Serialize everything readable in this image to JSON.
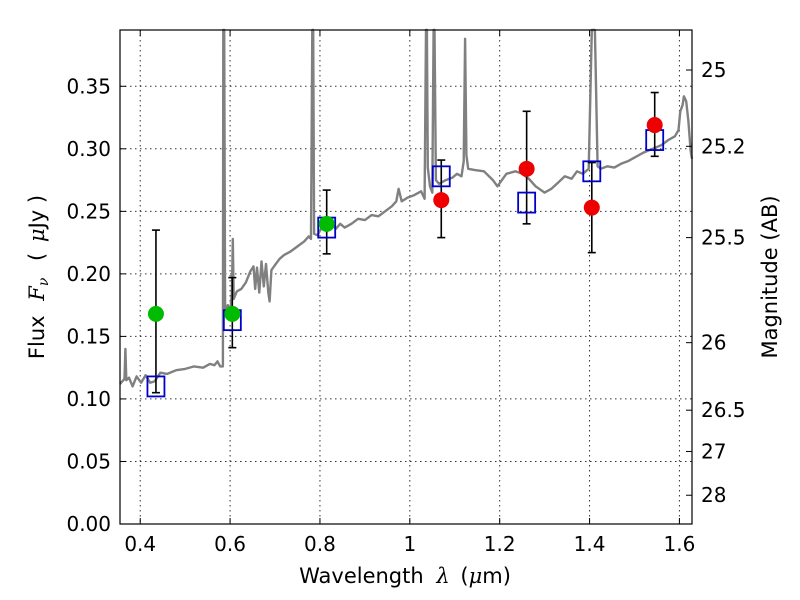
{
  "chart_data": {
    "type": "scatter",
    "xlabel": "Wavelength",
    "xlabel_symbol": "λ",
    "xlabel_unit_open": "(",
    "xlabel_unit_mu": "μ",
    "xlabel_unit_rest": "m)",
    "ylabel": "Flux",
    "ylabel_symbol": "F",
    "ylabel_subscript": "ν",
    "ylabel_unit_open": "(",
    "ylabel_unit_mu": "μ",
    "ylabel_unit_rest": "Jy )",
    "y2label": "Magnitude (AB)",
    "xlim": [
      0.355,
      1.628
    ],
    "ylim": [
      0.0,
      0.395
    ],
    "grid": true,
    "x_ticks": [
      0.4,
      0.6,
      0.8,
      1.0,
      1.2,
      1.4,
      1.6
    ],
    "x_tick_labels": [
      "0.4",
      "0.6",
      "0.8",
      "1",
      "1.2",
      "1.4",
      "1.6"
    ],
    "y_ticks": [
      0.0,
      0.05,
      0.1,
      0.15,
      0.2,
      0.25,
      0.3,
      0.35
    ],
    "y_tick_labels": [
      "0.00",
      "0.05",
      "0.10",
      "0.15",
      "0.20",
      "0.25",
      "0.30",
      "0.35"
    ],
    "mag_ticks": [
      {
        "label": "25",
        "flux": 0.363
      },
      {
        "label": "25.2",
        "flux": 0.302
      },
      {
        "label": "25.5",
        "flux": 0.229
      },
      {
        "label": "26",
        "flux": 0.145
      },
      {
        "label": "26.5",
        "flux": 0.091
      },
      {
        "label": "27",
        "flux": 0.058
      },
      {
        "label": "28",
        "flux": 0.023
      }
    ],
    "colors": {
      "model": "#808080",
      "green_points": "#00bb00",
      "red_points": "#ee0000",
      "model_squares": "#0000cc",
      "error_bars": "#000000"
    },
    "series": [
      {
        "name": "model spectrum",
        "kind": "line",
        "points": [
          [
            0.355,
            0.112
          ],
          [
            0.365,
            0.116
          ],
          [
            0.367,
            0.14
          ],
          [
            0.369,
            0.115
          ],
          [
            0.375,
            0.117
          ],
          [
            0.383,
            0.11
          ],
          [
            0.392,
            0.118
          ],
          [
            0.402,
            0.113
          ],
          [
            0.412,
            0.119
          ],
          [
            0.422,
            0.113
          ],
          [
            0.432,
            0.114
          ],
          [
            0.445,
            0.121
          ],
          [
            0.46,
            0.12
          ],
          [
            0.48,
            0.123
          ],
          [
            0.5,
            0.124
          ],
          [
            0.52,
            0.126
          ],
          [
            0.54,
            0.125
          ],
          [
            0.555,
            0.128
          ],
          [
            0.565,
            0.127
          ],
          [
            0.572,
            0.13
          ],
          [
            0.578,
            0.126
          ],
          [
            0.584,
            0.126
          ],
          [
            0.585,
            0.395
          ],
          [
            0.587,
            0.395
          ],
          [
            0.589,
            0.17
          ],
          [
            0.595,
            0.175
          ],
          [
            0.6,
            0.168
          ],
          [
            0.604,
            0.185
          ],
          [
            0.606,
            0.228
          ],
          [
            0.608,
            0.18
          ],
          [
            0.615,
            0.186
          ],
          [
            0.625,
            0.188
          ],
          [
            0.635,
            0.193
          ],
          [
            0.645,
            0.202
          ],
          [
            0.652,
            0.206
          ],
          [
            0.656,
            0.188
          ],
          [
            0.66,
            0.205
          ],
          [
            0.665,
            0.185
          ],
          [
            0.67,
            0.21
          ],
          [
            0.675,
            0.19
          ],
          [
            0.68,
            0.208
          ],
          [
            0.685,
            0.185
          ],
          [
            0.688,
            0.178
          ],
          [
            0.692,
            0.203
          ],
          [
            0.7,
            0.207
          ],
          [
            0.71,
            0.212
          ],
          [
            0.72,
            0.215
          ],
          [
            0.735,
            0.218
          ],
          [
            0.75,
            0.222
          ],
          [
            0.765,
            0.226
          ],
          [
            0.775,
            0.23
          ],
          [
            0.78,
            0.228
          ],
          [
            0.783,
            0.395
          ],
          [
            0.785,
            0.395
          ],
          [
            0.787,
            0.232
          ],
          [
            0.795,
            0.231
          ],
          [
            0.805,
            0.238
          ],
          [
            0.815,
            0.234
          ],
          [
            0.825,
            0.242
          ],
          [
            0.835,
            0.236
          ],
          [
            0.845,
            0.24
          ],
          [
            0.855,
            0.237
          ],
          [
            0.87,
            0.24
          ],
          [
            0.885,
            0.244
          ],
          [
            0.9,
            0.243
          ],
          [
            0.915,
            0.247
          ],
          [
            0.93,
            0.246
          ],
          [
            0.945,
            0.25
          ],
          [
            0.96,
            0.254
          ],
          [
            0.97,
            0.258
          ],
          [
            0.975,
            0.268
          ],
          [
            0.982,
            0.258
          ],
          [
            0.995,
            0.261
          ],
          [
            1.01,
            0.263
          ],
          [
            1.025,
            0.266
          ],
          [
            1.033,
            0.26
          ],
          [
            1.036,
            0.395
          ],
          [
            1.038,
            0.395
          ],
          [
            1.04,
            0.285
          ],
          [
            1.045,
            0.27
          ],
          [
            1.05,
            0.265
          ],
          [
            1.053,
            0.395
          ],
          [
            1.055,
            0.395
          ],
          [
            1.058,
            0.275
          ],
          [
            1.065,
            0.272
          ],
          [
            1.08,
            0.275
          ],
          [
            1.095,
            0.277
          ],
          [
            1.105,
            0.28
          ],
          [
            1.115,
            0.278
          ],
          [
            1.12,
            0.29
          ],
          [
            1.123,
            0.388
          ],
          [
            1.126,
            0.295
          ],
          [
            1.13,
            0.284
          ],
          [
            1.145,
            0.283
          ],
          [
            1.165,
            0.282
          ],
          [
            1.185,
            0.275
          ],
          [
            1.195,
            0.27
          ],
          [
            1.205,
            0.275
          ],
          [
            1.215,
            0.28
          ],
          [
            1.235,
            0.282
          ],
          [
            1.25,
            0.28
          ],
          [
            1.265,
            0.276
          ],
          [
            1.28,
            0.27
          ],
          [
            1.3,
            0.265
          ],
          [
            1.315,
            0.268
          ],
          [
            1.33,
            0.273
          ],
          [
            1.345,
            0.278
          ],
          [
            1.36,
            0.276
          ],
          [
            1.372,
            0.282
          ],
          [
            1.385,
            0.28
          ],
          [
            1.398,
            0.284
          ],
          [
            1.405,
            0.395
          ],
          [
            1.412,
            0.395
          ],
          [
            1.418,
            0.286
          ],
          [
            1.425,
            0.284
          ],
          [
            1.44,
            0.286
          ],
          [
            1.455,
            0.285
          ],
          [
            1.47,
            0.288
          ],
          [
            1.485,
            0.29
          ],
          [
            1.5,
            0.293
          ],
          [
            1.52,
            0.297
          ],
          [
            1.54,
            0.3
          ],
          [
            1.56,
            0.303
          ],
          [
            1.575,
            0.307
          ],
          [
            1.59,
            0.31
          ],
          [
            1.598,
            0.315
          ],
          [
            1.602,
            0.33
          ],
          [
            1.607,
            0.335
          ],
          [
            1.61,
            0.342
          ],
          [
            1.615,
            0.338
          ],
          [
            1.62,
            0.322
          ],
          [
            1.625,
            0.298
          ],
          [
            1.628,
            0.292
          ]
        ]
      },
      {
        "name": "observed (green)",
        "kind": "points",
        "points": [
          {
            "x": 0.435,
            "y": 0.168,
            "ylo": 0.105,
            "yhi": 0.235
          },
          {
            "x": 0.605,
            "y": 0.168,
            "ylo": 0.141,
            "yhi": 0.197
          },
          {
            "x": 0.815,
            "y": 0.24,
            "ylo": 0.216,
            "yhi": 0.267
          }
        ]
      },
      {
        "name": "observed (red)",
        "kind": "points",
        "points": [
          {
            "x": 1.07,
            "y": 0.259,
            "ylo": 0.229,
            "yhi": 0.291
          },
          {
            "x": 1.26,
            "y": 0.284,
            "ylo": 0.24,
            "yhi": 0.33
          },
          {
            "x": 1.405,
            "y": 0.253,
            "ylo": 0.217,
            "yhi": 0.289
          },
          {
            "x": 1.545,
            "y": 0.319,
            "ylo": 0.294,
            "yhi": 0.345
          }
        ]
      },
      {
        "name": "model photometry",
        "kind": "squares",
        "points": [
          {
            "x": 0.435,
            "y": 0.11
          },
          {
            "x": 0.605,
            "y": 0.163
          },
          {
            "x": 0.815,
            "y": 0.237
          },
          {
            "x": 1.07,
            "y": 0.278
          },
          {
            "x": 1.26,
            "y": 0.257
          },
          {
            "x": 1.405,
            "y": 0.282
          },
          {
            "x": 1.545,
            "y": 0.307
          }
        ]
      }
    ]
  }
}
